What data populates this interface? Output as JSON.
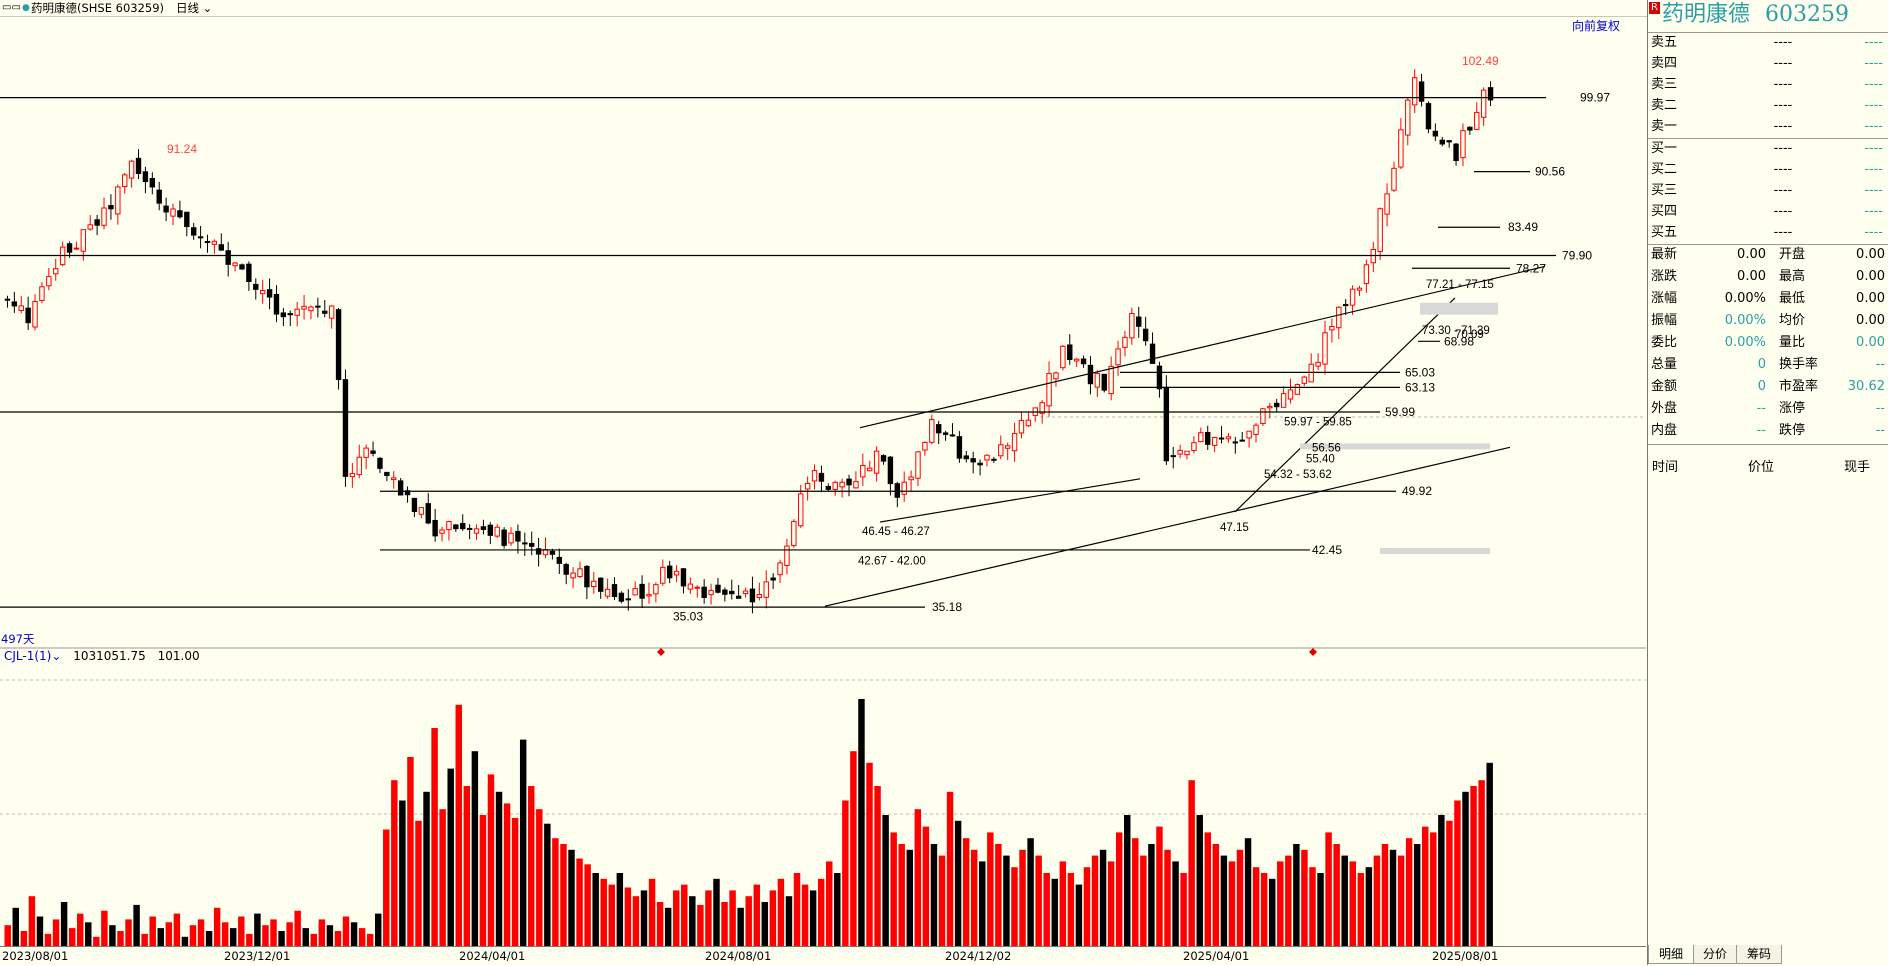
{
  "header": {
    "window_icon": "minimize-icon",
    "title": "药明康德(SHSE 603259)",
    "period": "日线",
    "adjust": "向前复权",
    "day_count": "497天",
    "indicator": "CJL-1(1)",
    "indicator_value1": "1031051.75",
    "indicator_value2": "101.00"
  },
  "panel": {
    "r_badge": "R",
    "name": "药明康德",
    "code": "603259",
    "sell": [
      {
        "label": "卖五",
        "price": "----",
        "vol": "----"
      },
      {
        "label": "卖四",
        "price": "----",
        "vol": "----"
      },
      {
        "label": "卖三",
        "price": "----",
        "vol": "----"
      },
      {
        "label": "卖二",
        "price": "----",
        "vol": "----"
      },
      {
        "label": "卖一",
        "price": "----",
        "vol": "----"
      }
    ],
    "buy": [
      {
        "label": "买一",
        "price": "----",
        "vol": "----"
      },
      {
        "label": "买二",
        "price": "----",
        "vol": "----"
      },
      {
        "label": "买三",
        "price": "----",
        "vol": "----"
      },
      {
        "label": "买四",
        "price": "----",
        "vol": "----"
      },
      {
        "label": "买五",
        "price": "----",
        "vol": "----"
      }
    ],
    "stats_left": [
      {
        "label": "最新",
        "value": "0.00"
      },
      {
        "label": "涨跌",
        "value": "0.00"
      },
      {
        "label": "涨幅",
        "value": "0.00%"
      },
      {
        "label": "振幅",
        "value": "0.00%"
      },
      {
        "label": "委比",
        "value": "0.00%"
      },
      {
        "label": "总量",
        "value": "0"
      },
      {
        "label": "金额",
        "value": "0"
      },
      {
        "label": "外盘",
        "value": "--"
      },
      {
        "label": "内盘",
        "value": "--"
      }
    ],
    "stats_right": [
      {
        "label": "开盘",
        "value": "0.00"
      },
      {
        "label": "最高",
        "value": "0.00"
      },
      {
        "label": "最低",
        "value": "0.00"
      },
      {
        "label": "均价",
        "value": "0.00"
      },
      {
        "label": "量比",
        "value": "0.00"
      },
      {
        "label": "换手率",
        "value": "--"
      },
      {
        "label": "市盈率",
        "value": "30.62"
      },
      {
        "label": "涨停",
        "value": "--"
      },
      {
        "label": "跌停",
        "value": "--"
      }
    ],
    "trade_headers": [
      "时间",
      "价位",
      "现手"
    ],
    "tabs": [
      "明细",
      "分价",
      "筹码"
    ]
  },
  "colors": {
    "up": "#ff0000",
    "down": "#000000",
    "teal": "#2a9fa6",
    "background": "#fffff0"
  },
  "chart_data": {
    "type": "candlestick",
    "symbol": "603259",
    "x_ticks": [
      "2023/08/01",
      "2023/12/01",
      "2024/04/01",
      "2024/08/01",
      "2024/12/02",
      "2025/04/01",
      "2025/08/01"
    ],
    "price_range": [
      33,
      104
    ],
    "extremes": [
      {
        "label": "102.49",
        "value": 102.49,
        "date": "2025/08"
      },
      {
        "label": "91.24",
        "value": 91.24,
        "date": "2023/10"
      },
      {
        "label": "35.03",
        "value": 35.03,
        "date": "2024/09"
      }
    ],
    "horizontal_levels": [
      "99.97",
      "90.56",
      "83.49",
      "79.90",
      "78.27",
      "68.98",
      "65.03",
      "63.13",
      "59.99",
      "49.92",
      "42.45",
      "35.18"
    ],
    "zone_labels": [
      "77.21 - 77.15",
      "73.30 - 71.39",
      "70.09",
      "59.97 - 59.85",
      "56.56",
      "55.40",
      "54.32 - 53.62",
      "46.45 - 46.27",
      "47.15",
      "42.67 - 42.00"
    ],
    "price_path": [
      [
        0,
        74
      ],
      [
        3,
        72
      ],
      [
        8,
        80
      ],
      [
        14,
        85
      ],
      [
        18,
        91.24
      ],
      [
        23,
        86
      ],
      [
        29,
        82
      ],
      [
        33,
        78
      ],
      [
        41,
        72
      ],
      [
        44,
        74
      ],
      [
        47,
        73
      ],
      [
        48,
        64
      ],
      [
        49,
        52
      ],
      [
        52,
        55
      ],
      [
        57,
        50
      ],
      [
        62,
        45
      ],
      [
        68,
        46
      ],
      [
        74,
        43
      ],
      [
        82,
        40
      ],
      [
        89,
        35.03
      ],
      [
        96,
        40
      ],
      [
        101,
        37
      ],
      [
        108,
        36
      ],
      [
        113,
        42
      ],
      [
        116,
        52
      ],
      [
        122,
        50
      ],
      [
        126,
        55
      ],
      [
        129,
        49
      ],
      [
        134,
        58
      ],
      [
        141,
        53
      ],
      [
        149,
        60
      ],
      [
        153,
        68
      ],
      [
        159,
        63
      ],
      [
        163,
        72
      ],
      [
        167,
        64
      ],
      [
        168,
        53
      ],
      [
        173,
        57
      ],
      [
        178,
        56.5
      ],
      [
        184,
        61
      ],
      [
        189,
        65
      ],
      [
        192,
        71
      ],
      [
        197,
        78
      ],
      [
        202,
        95
      ],
      [
        204,
        102.49
      ],
      [
        206,
        96
      ],
      [
        210,
        93
      ],
      [
        214,
        100
      ]
    ],
    "volume_range": [
      0,
      100
    ],
    "volumes": [
      12,
      18,
      10,
      22,
      15,
      9,
      14,
      20,
      11,
      16,
      13,
      8,
      17,
      12,
      10,
      14,
      19,
      9,
      15,
      11,
      13,
      16,
      8,
      12,
      14,
      10,
      18,
      13,
      11,
      15,
      9,
      16,
      12,
      14,
      10,
      13,
      17,
      11,
      9,
      14,
      12,
      10,
      15,
      13,
      11,
      9,
      16,
      45,
      62,
      55,
      70,
      48,
      58,
      80,
      52,
      66,
      88,
      60,
      72,
      50,
      64,
      58,
      54,
      49,
      76,
      60,
      52,
      47,
      42,
      40,
      38,
      35,
      33,
      30,
      28,
      26,
      30,
      25,
      22,
      24,
      28,
      20,
      18,
      24,
      26,
      22,
      19,
      24,
      28,
      20,
      24,
      18,
      22,
      26,
      20,
      24,
      28,
      22,
      30,
      26,
      24,
      28,
      34,
      30,
      55,
      72,
      90,
      68,
      60,
      50,
      44,
      40,
      38,
      52,
      46,
      40,
      36,
      58,
      48,
      42,
      38,
      34,
      44,
      40,
      36,
      32,
      38,
      42,
      36,
      30,
      28,
      34,
      30,
      26,
      32,
      36,
      38,
      34,
      44,
      50,
      42,
      36,
      40,
      46,
      38,
      34,
      30,
      62,
      50,
      44,
      40,
      36,
      34,
      38,
      42,
      32,
      30,
      28,
      34,
      36,
      40,
      38,
      32,
      30,
      44,
      40,
      36,
      34,
      30,
      32,
      36,
      40,
      38,
      36,
      42,
      40,
      46,
      44,
      50,
      48,
      55,
      58,
      60,
      62,
      68
    ]
  }
}
